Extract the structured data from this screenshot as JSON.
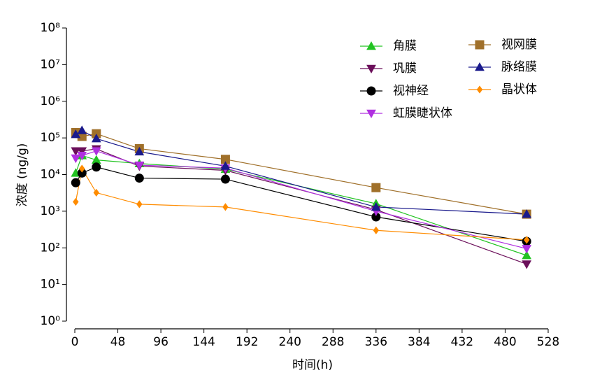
{
  "chart_data": {
    "type": "line",
    "x_label": "时间(h)",
    "y_label": "浓度 (ng/g)",
    "log_y": true,
    "xlim": [
      0,
      528
    ],
    "xticks": [
      0,
      48,
      96,
      144,
      192,
      240,
      288,
      336,
      384,
      432,
      480,
      528
    ],
    "ylim": [
      1,
      100000000
    ],
    "yticks": [
      {
        "value": 1,
        "label": "10⁰"
      },
      {
        "value": 10,
        "label": "10¹"
      },
      {
        "value": 100,
        "label": "10²"
      },
      {
        "value": 1000,
        "label": "10³"
      },
      {
        "value": 10000,
        "label": "10⁴"
      },
      {
        "value": 100000,
        "label": "10⁵"
      },
      {
        "value": 1000000,
        "label": "10⁶"
      },
      {
        "value": 10000000,
        "label": "10⁷"
      },
      {
        "value": 100000000,
        "label": "10⁸"
      }
    ],
    "x": [
      1,
      8,
      24,
      72,
      168,
      336,
      504
    ],
    "series": [
      {
        "name": "角膜",
        "color": "#22c322",
        "marker": "triangle",
        "values": [
          11000,
          33000,
          25000,
          20000,
          14000,
          1600,
          62
        ]
      },
      {
        "name": "巩膜",
        "color": "#6b0f5a",
        "marker": "triangle-down",
        "values": [
          44000,
          44000,
          50000,
          17000,
          13000,
          1100,
          36
        ]
      },
      {
        "name": "视神经",
        "color": "#000000",
        "marker": "circle",
        "values": [
          6000,
          11000,
          16000,
          8000,
          7500,
          700,
          150
        ]
      },
      {
        "name": "虹膜睫状体",
        "color": "#b030e0",
        "marker": "triangle-down",
        "values": [
          28000,
          33000,
          44000,
          18000,
          15000,
          1000,
          95
        ]
      },
      {
        "name": "视网膜",
        "color": "#a0702a",
        "marker": "square",
        "values": [
          140000,
          110000,
          130000,
          51000,
          26000,
          4400,
          830
        ]
      },
      {
        "name": "脉络膜",
        "color": "#1a1a8c",
        "marker": "triangle",
        "values": [
          125000,
          160000,
          96000,
          42000,
          17000,
          1300,
          830
        ]
      },
      {
        "name": "晶状体",
        "color": "#ff8c00",
        "marker": "diamond",
        "values": [
          1800,
          14500,
          3200,
          1550,
          1300,
          300,
          165
        ]
      }
    ]
  }
}
